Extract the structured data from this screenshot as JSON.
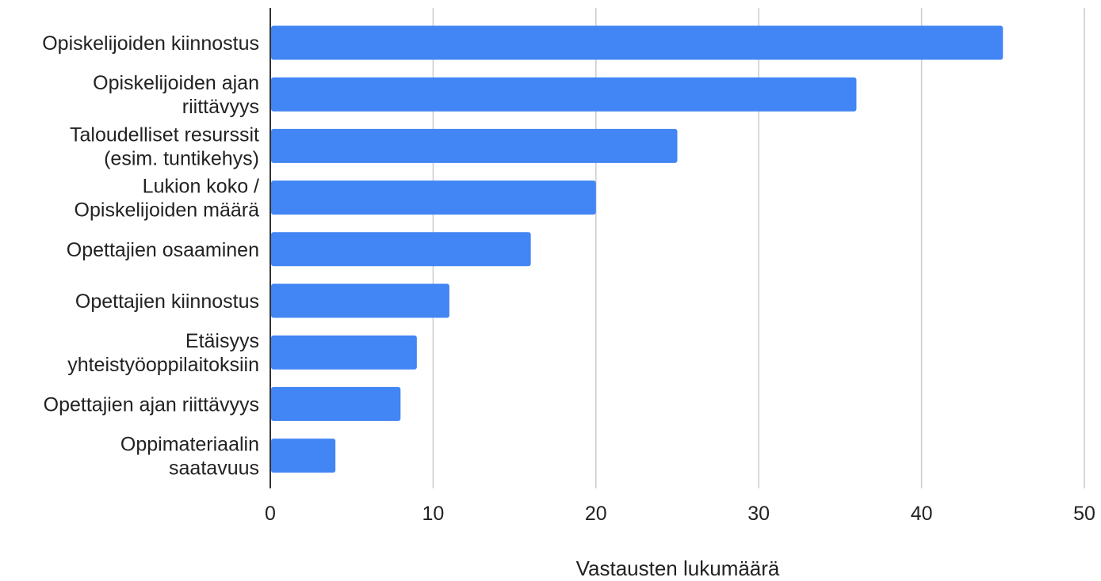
{
  "chart_data": {
    "type": "bar",
    "orientation": "horizontal",
    "categories": [
      [
        "Opiskelijoiden kiinnostus"
      ],
      [
        "Opiskelijoiden ajan",
        "riittävyys"
      ],
      [
        "Taloudelliset resurssit",
        "(esim. tuntikehys)"
      ],
      [
        "Lukion koko /",
        "Opiskelijoiden määrä"
      ],
      [
        "Opettajien osaaminen"
      ],
      [
        "Opettajien kiinnostus"
      ],
      [
        "Etäisyys",
        "yhteistyöoppilaitoksiin"
      ],
      [
        "Opettajien ajan riittävyys"
      ],
      [
        "Oppimateriaalin",
        "saatavuus"
      ]
    ],
    "values": [
      45,
      36,
      25,
      20,
      16,
      11,
      9,
      8,
      4
    ],
    "xlabel": "Vastausten lukumäärä",
    "ylabel": "",
    "xlim": [
      0,
      50
    ],
    "xticks": [
      "0",
      "10",
      "20",
      "30",
      "40",
      "50"
    ],
    "grid": true,
    "colors": {
      "bar": "#4285F4",
      "grid": "#CCCCCC",
      "axis": "#333333"
    }
  }
}
